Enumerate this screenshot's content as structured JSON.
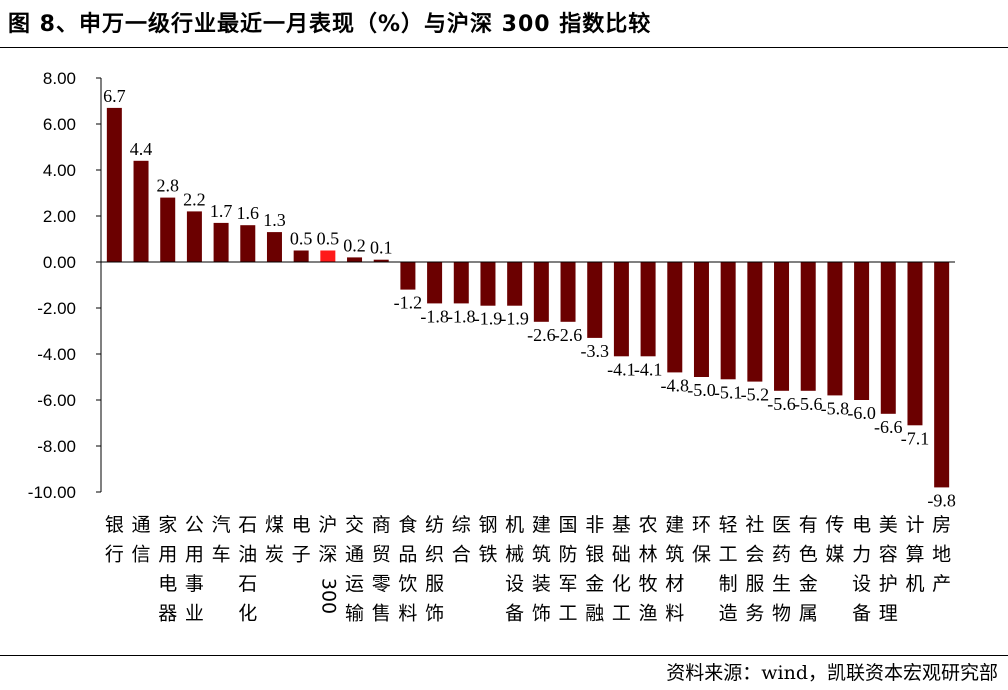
{
  "figure_title": "图 8、申万一级行业最近一月表现（%）与沪深 300 指数比较",
  "source_note": "资料来源：wind，凯联资本宏观研究部",
  "colors": {
    "bar": "#6B0000",
    "highlight": "#FF1A1A",
    "axis": "#000000"
  },
  "chart_data": {
    "type": "bar",
    "title": "",
    "xlabel": "",
    "ylabel": "",
    "ylim": [
      -10,
      8
    ],
    "yticks": [
      8,
      6,
      4,
      2,
      0,
      -2,
      -4,
      -6,
      -8,
      -10
    ],
    "ytick_labels": [
      "8.00",
      "6.00",
      "4.00",
      "2.00",
      "0.00",
      "-2.00",
      "-4.00",
      "-6.00",
      "-8.00",
      "-10.00"
    ],
    "grid": false,
    "legend": "none",
    "highlight_category": "沪深300",
    "categories": [
      "银行",
      "通信",
      "家用电器",
      "公用事业",
      "汽车",
      "石油石化",
      "煤炭",
      "电子",
      "沪深300",
      "交通运输",
      "商贸零售",
      "食品饮料",
      "纺织服饰",
      "综合",
      "钢铁",
      "机械设备",
      "建筑装饰",
      "国防军工",
      "非银金融",
      "基础化工",
      "农林牧渔",
      "建筑材料",
      "环保",
      "轻工制造",
      "社会服务",
      "医药生物",
      "有色金属",
      "传媒",
      "电力设备",
      "美容护理",
      "计算机",
      "房地产"
    ],
    "values": [
      6.7,
      4.4,
      2.8,
      2.2,
      1.7,
      1.6,
      1.3,
      0.5,
      0.5,
      0.2,
      0.1,
      -1.2,
      -1.8,
      -1.8,
      -1.9,
      -1.9,
      -2.6,
      -2.6,
      -3.3,
      -4.1,
      -4.1,
      -4.8,
      -5.0,
      -5.1,
      -5.2,
      -5.6,
      -5.6,
      -5.8,
      -6.0,
      -6.6,
      -7.1,
      -9.8
    ],
    "data_labels": [
      "6.7",
      "4.4",
      "2.8",
      "2.2",
      "1.7",
      "1.6",
      "1.3",
      "0.5",
      "0.5",
      "0.2",
      "0.1",
      "-1.2",
      "-1.8",
      "-1.8",
      "-1.9",
      "-1.9",
      "-2.6",
      "-2.6",
      "-3.3",
      "-4.1",
      "-4.1",
      "-4.8",
      "-5.0",
      "-5.1",
      "-5.2",
      "-5.6",
      "-5.6",
      "-5.8",
      "-6.0",
      "-6.6",
      "-7.1",
      "-9.8"
    ]
  }
}
